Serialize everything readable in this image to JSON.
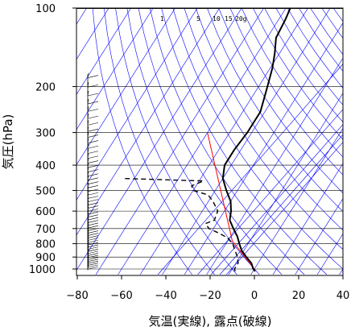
{
  "chart_data": {
    "type": "skew-t",
    "xlabel": "気温(実線), 露点(破線)",
    "ylabel": "気圧(hPa)",
    "pressure_ticks": [
      100,
      200,
      300,
      400,
      500,
      600,
      700,
      800,
      900,
      1000
    ],
    "temperature_ticks": [
      -80,
      -60,
      -40,
      -20,
      0,
      20,
      40
    ],
    "xlim": [
      -80,
      40
    ],
    "ylim": [
      1050,
      100
    ],
    "mixing_ratio_labels": [
      "1",
      "5",
      "10",
      "15",
      "20g"
    ],
    "temperature_profile": [
      {
        "p": 1020,
        "t": 1
      },
      {
        "p": 1000,
        "t": -0.5
      },
      {
        "p": 950,
        "t": -3
      },
      {
        "p": 900,
        "t": -7
      },
      {
        "p": 850,
        "t": -11
      },
      {
        "p": 800,
        "t": -14
      },
      {
        "p": 750,
        "t": -17
      },
      {
        "p": 700,
        "t": -21
      },
      {
        "p": 650,
        "t": -25
      },
      {
        "p": 600,
        "t": -27
      },
      {
        "p": 550,
        "t": -30
      },
      {
        "p": 500,
        "t": -35
      },
      {
        "p": 450,
        "t": -40
      },
      {
        "p": 400,
        "t": -43
      },
      {
        "p": 350,
        "t": -43
      },
      {
        "p": 300,
        "t": -42
      },
      {
        "p": 250,
        "t": -42
      },
      {
        "p": 200,
        "t": -46
      },
      {
        "p": 170,
        "t": -49
      },
      {
        "p": 150,
        "t": -52
      },
      {
        "p": 130,
        "t": -56
      },
      {
        "p": 110,
        "t": -57
      },
      {
        "p": 100,
        "t": -58
      }
    ],
    "dewpoint_profile": [
      {
        "p": 1020,
        "t": -8
      },
      {
        "p": 1000,
        "t": -9
      },
      {
        "p": 950,
        "t": -9
      },
      {
        "p": 900,
        "t": -11
      },
      {
        "p": 850,
        "t": -14
      },
      {
        "p": 800,
        "t": -17
      },
      {
        "p": 760,
        "t": -21
      },
      {
        "p": 730,
        "t": -26
      },
      {
        "p": 700,
        "t": -32
      },
      {
        "p": 670,
        "t": -35
      },
      {
        "p": 650,
        "t": -32
      },
      {
        "p": 600,
        "t": -33
      },
      {
        "p": 550,
        "t": -38
      },
      {
        "p": 520,
        "t": -42
      },
      {
        "p": 500,
        "t": -50
      },
      {
        "p": 480,
        "t": -52
      },
      {
        "p": 460,
        "t": -48
      },
      {
        "p": 450,
        "t": -85
      }
    ],
    "parcel_path": [
      {
        "p": 1000,
        "t": 0
      },
      {
        "p": 780,
        "t": -18
      },
      {
        "p": 300,
        "t": -60
      }
    ],
    "colors": {
      "temperature": "#000000",
      "dewpoint": "#000000",
      "parcel": "#ff0000",
      "guide_lines": "#0000ff",
      "isobars": "#000000"
    }
  }
}
